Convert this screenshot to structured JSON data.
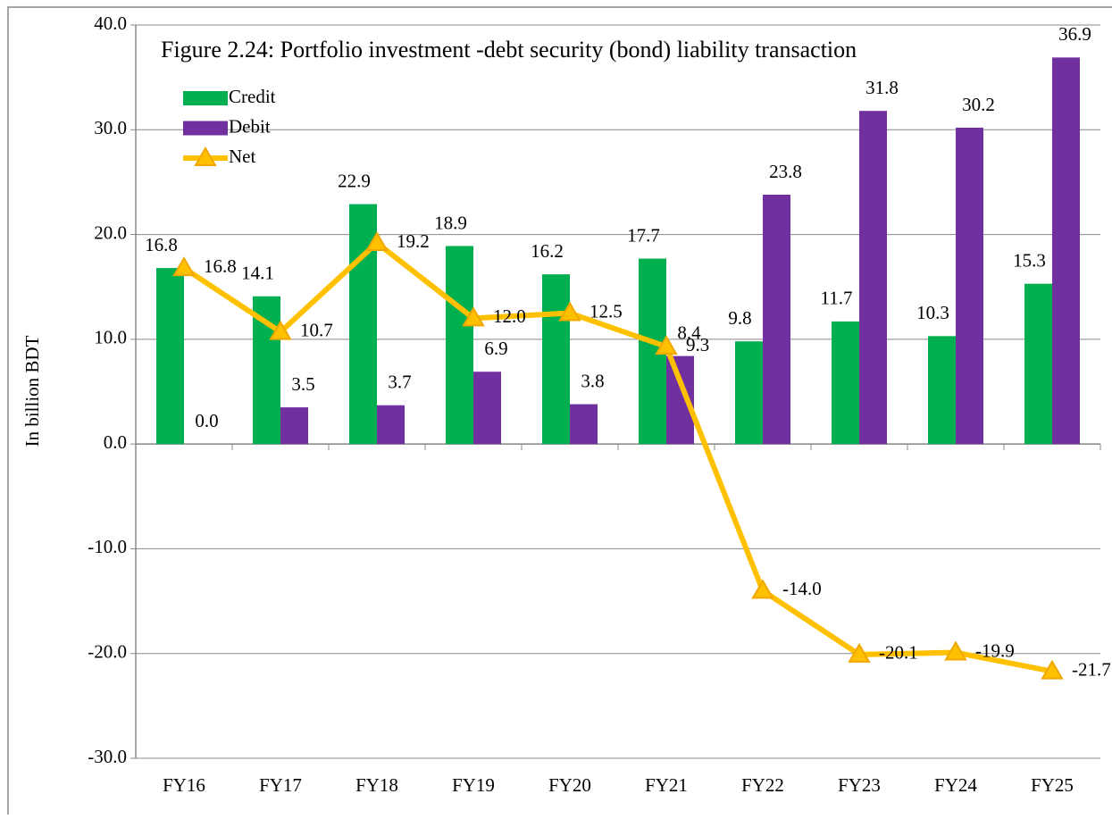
{
  "chart_data": {
    "type": "bar-line",
    "title": "Figure 2.24: Portfolio investment -debt security (bond) liability transaction",
    "ylabel": "In billion BDT",
    "categories": [
      "FY16",
      "FY17",
      "FY18",
      "FY19",
      "FY20",
      "FY21",
      "FY22",
      "FY23",
      "FY24",
      "FY25"
    ],
    "series": [
      {
        "name": "Credit",
        "type": "bar",
        "color": "#00b050",
        "values": [
          16.8,
          14.1,
          22.9,
          18.9,
          16.2,
          17.7,
          9.8,
          11.7,
          10.3,
          15.3
        ],
        "value_labels": [
          "16.8",
          "14.1",
          "22.9",
          "18.9",
          "16.2",
          "17.7",
          "9.8",
          "11.7",
          "10.3",
          "15.3"
        ]
      },
      {
        "name": "Debit",
        "type": "bar",
        "color": "#7030a0",
        "values": [
          0,
          3.5,
          3.7,
          6.9,
          3.8,
          8.4,
          23.8,
          31.8,
          30.2,
          36.9
        ],
        "value_labels": [
          "0.0",
          "3.5",
          "3.7",
          "6.9",
          "3.8",
          "8.4",
          "23.8",
          "31.8",
          "30.2",
          "36.9"
        ]
      },
      {
        "name": "Net",
        "type": "line",
        "color": "#ffc000",
        "values": [
          16.8,
          10.7,
          19.2,
          12.0,
          12.5,
          9.3,
          -14.0,
          -20.1,
          -19.9,
          -21.7
        ],
        "value_labels": [
          "16.8",
          "10.7",
          "19.2",
          "12.0",
          "12.5",
          "9.3",
          "-14.0",
          "-20.1",
          "-19.9",
          "-21.7"
        ]
      }
    ],
    "ylim": [
      -30,
      40
    ],
    "yticks": [
      {
        "value": -30,
        "label": "-30.0"
      },
      {
        "value": -20,
        "label": "-20.0"
      },
      {
        "value": -10,
        "label": "-10.0"
      },
      {
        "value": 0,
        "label": "0.0"
      },
      {
        "value": 10,
        "label": "10.0"
      },
      {
        "value": 20,
        "label": "20.0"
      },
      {
        "value": 30,
        "label": "30.0"
      },
      {
        "value": 40,
        "label": "40.0"
      }
    ],
    "grid": true,
    "legend": "upper left"
  }
}
